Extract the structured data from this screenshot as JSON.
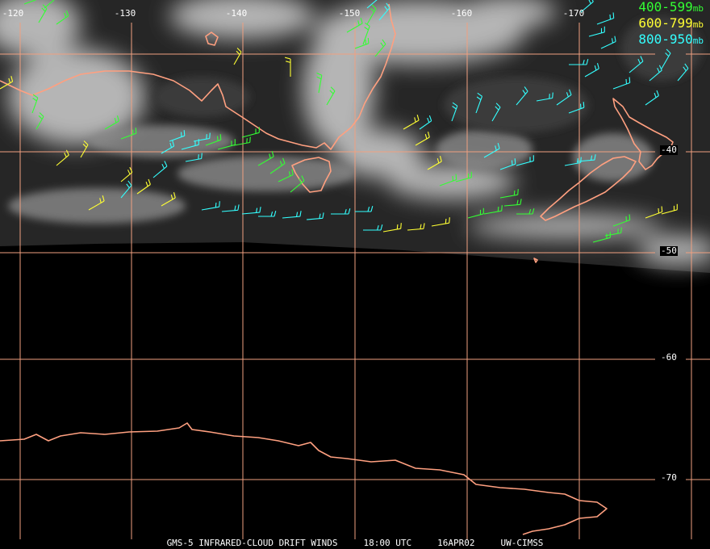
{
  "image": {
    "kind": "satellite infrared image with cloud drift wind barbs",
    "background_color": "#000000"
  },
  "grid": {
    "color": "#f0a080",
    "longitude_labels": [
      "-120",
      "-130",
      "-140",
      "-150",
      "-160",
      "-170"
    ],
    "latitude_labels": [
      "-40",
      "-50",
      "-60",
      "-70"
    ]
  },
  "legend": [
    {
      "range": "400-599",
      "unit": "mb",
      "color": "#33ff33"
    },
    {
      "range": "600-799",
      "unit": "mb",
      "color": "#ffff33"
    },
    {
      "range": "800-950",
      "unit": "mb",
      "color": "#33ffff"
    }
  ],
  "coastline_color": "#ffa080",
  "footer": {
    "satellite": "GMS-5 INFRARED-CLOUD DRIFT WINDS",
    "time": "18:00 UTC",
    "date": "16APR02",
    "source": "UW-CIMSS"
  }
}
